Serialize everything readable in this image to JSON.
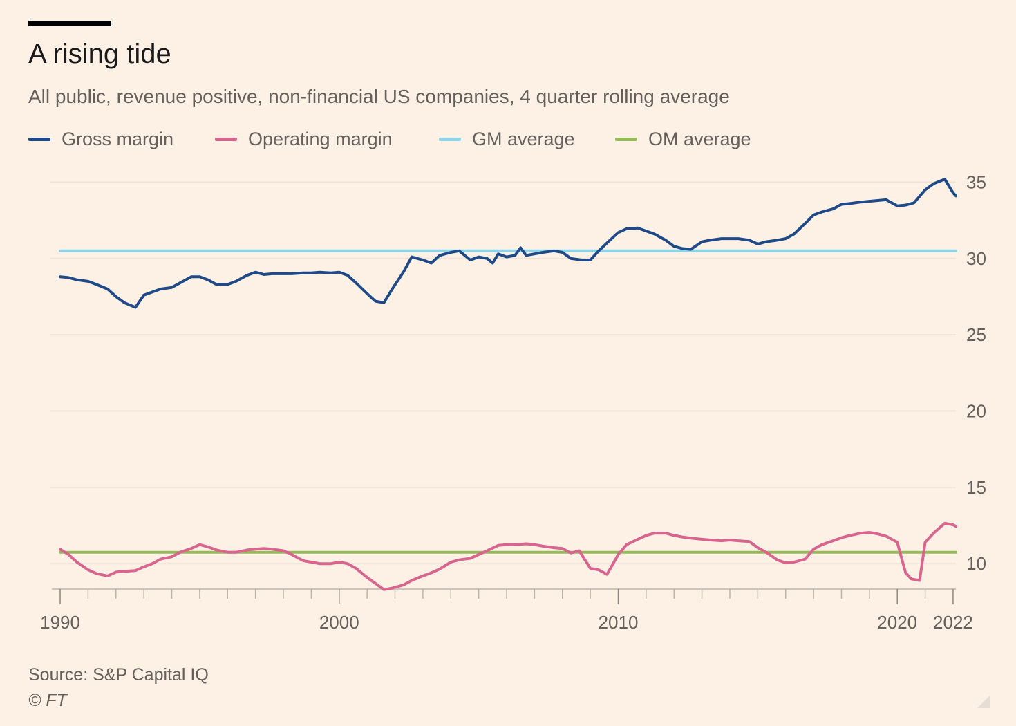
{
  "header": {
    "title": "A rising tide",
    "subtitle": "All public, revenue positive, non-financial US companies, 4 quarter rolling average"
  },
  "legend": [
    {
      "label": "Gross margin",
      "color": "#204a87"
    },
    {
      "label": "Operating margin",
      "color": "#d8658e"
    },
    {
      "label": "GM average",
      "color": "#8fd3e8"
    },
    {
      "label": "OM average",
      "color": "#96bb59"
    }
  ],
  "footer": {
    "source": "Source: S&P Capital IQ",
    "copyright": "© FT"
  },
  "chart_data": {
    "type": "line",
    "title": "A rising tide",
    "subtitle": "All public, revenue positive, non-financial US companies, 4 quarter rolling average",
    "xlim": [
      1989.9,
      2022.1
    ],
    "ylim": [
      7.7,
      36.2
    ],
    "x_ticks": [
      1990,
      2000,
      2010,
      2020,
      2022
    ],
    "y_ticks": [
      10,
      15,
      20,
      25,
      30,
      35
    ],
    "y_axis_side": "right",
    "grid": "horizontal",
    "legend_position": "top",
    "series": [
      {
        "name": "Gross margin",
        "color": "#204a87",
        "points": [
          [
            1990.0,
            28.8
          ],
          [
            1990.3,
            28.75
          ],
          [
            1990.6,
            28.6
          ],
          [
            1991.0,
            28.5
          ],
          [
            1991.3,
            28.3
          ],
          [
            1991.7,
            28.0
          ],
          [
            1992.0,
            27.5
          ],
          [
            1992.3,
            27.1
          ],
          [
            1992.7,
            26.8
          ],
          [
            1993.0,
            27.6
          ],
          [
            1993.3,
            27.8
          ],
          [
            1993.6,
            28.0
          ],
          [
            1994.0,
            28.1
          ],
          [
            1994.3,
            28.4
          ],
          [
            1994.7,
            28.8
          ],
          [
            1995.0,
            28.8
          ],
          [
            1995.3,
            28.6
          ],
          [
            1995.6,
            28.3
          ],
          [
            1996.0,
            28.3
          ],
          [
            1996.3,
            28.5
          ],
          [
            1996.7,
            28.9
          ],
          [
            1997.0,
            29.1
          ],
          [
            1997.3,
            28.95
          ],
          [
            1997.6,
            29.0
          ],
          [
            1998.0,
            29.0
          ],
          [
            1998.3,
            29.0
          ],
          [
            1998.7,
            29.05
          ],
          [
            1999.0,
            29.05
          ],
          [
            1999.3,
            29.1
          ],
          [
            1999.7,
            29.05
          ],
          [
            2000.0,
            29.1
          ],
          [
            2000.3,
            28.9
          ],
          [
            2000.6,
            28.4
          ],
          [
            2001.0,
            27.7
          ],
          [
            2001.3,
            27.2
          ],
          [
            2001.6,
            27.1
          ],
          [
            2001.9,
            28.0
          ],
          [
            2002.3,
            29.1
          ],
          [
            2002.6,
            30.1
          ],
          [
            2003.0,
            29.9
          ],
          [
            2003.3,
            29.7
          ],
          [
            2003.6,
            30.2
          ],
          [
            2004.0,
            30.4
          ],
          [
            2004.3,
            30.5
          ],
          [
            2004.7,
            29.9
          ],
          [
            2005.0,
            30.1
          ],
          [
            2005.3,
            30.0
          ],
          [
            2005.5,
            29.7
          ],
          [
            2005.7,
            30.3
          ],
          [
            2006.0,
            30.1
          ],
          [
            2006.3,
            30.2
          ],
          [
            2006.5,
            30.7
          ],
          [
            2006.7,
            30.2
          ],
          [
            2007.0,
            30.3
          ],
          [
            2007.3,
            30.4
          ],
          [
            2007.7,
            30.5
          ],
          [
            2008.0,
            30.4
          ],
          [
            2008.3,
            30.0
          ],
          [
            2008.7,
            29.9
          ],
          [
            2009.0,
            29.9
          ],
          [
            2009.3,
            30.5
          ],
          [
            2009.7,
            31.2
          ],
          [
            2010.0,
            31.7
          ],
          [
            2010.3,
            31.95
          ],
          [
            2010.7,
            32.0
          ],
          [
            2011.0,
            31.8
          ],
          [
            2011.3,
            31.6
          ],
          [
            2011.7,
            31.2
          ],
          [
            2012.0,
            30.8
          ],
          [
            2012.3,
            30.65
          ],
          [
            2012.6,
            30.6
          ],
          [
            2013.0,
            31.1
          ],
          [
            2013.3,
            31.2
          ],
          [
            2013.7,
            31.3
          ],
          [
            2014.0,
            31.3
          ],
          [
            2014.3,
            31.3
          ],
          [
            2014.7,
            31.2
          ],
          [
            2015.0,
            30.95
          ],
          [
            2015.3,
            31.1
          ],
          [
            2015.7,
            31.2
          ],
          [
            2016.0,
            31.3
          ],
          [
            2016.3,
            31.6
          ],
          [
            2016.7,
            32.3
          ],
          [
            2017.0,
            32.85
          ],
          [
            2017.3,
            33.05
          ],
          [
            2017.7,
            33.25
          ],
          [
            2018.0,
            33.55
          ],
          [
            2018.3,
            33.6
          ],
          [
            2018.7,
            33.7
          ],
          [
            2019.0,
            33.75
          ],
          [
            2019.3,
            33.8
          ],
          [
            2019.6,
            33.85
          ],
          [
            2020.0,
            33.45
          ],
          [
            2020.3,
            33.5
          ],
          [
            2020.6,
            33.65
          ],
          [
            2021.0,
            34.5
          ],
          [
            2021.3,
            34.9
          ],
          [
            2021.7,
            35.2
          ],
          [
            2022.0,
            34.3
          ],
          [
            2022.1,
            34.1
          ]
        ]
      },
      {
        "name": "Operating margin",
        "color": "#d8658e",
        "points": [
          [
            1990.0,
            10.95
          ],
          [
            1990.3,
            10.6
          ],
          [
            1990.6,
            10.1
          ],
          [
            1991.0,
            9.6
          ],
          [
            1991.3,
            9.35
          ],
          [
            1991.7,
            9.2
          ],
          [
            1992.0,
            9.45
          ],
          [
            1992.3,
            9.5
          ],
          [
            1992.7,
            9.55
          ],
          [
            1993.0,
            9.8
          ],
          [
            1993.3,
            10.0
          ],
          [
            1993.6,
            10.3
          ],
          [
            1994.0,
            10.45
          ],
          [
            1994.3,
            10.75
          ],
          [
            1994.7,
            11.0
          ],
          [
            1995.0,
            11.25
          ],
          [
            1995.3,
            11.1
          ],
          [
            1995.6,
            10.9
          ],
          [
            1996.0,
            10.75
          ],
          [
            1996.3,
            10.75
          ],
          [
            1996.7,
            10.9
          ],
          [
            1997.0,
            10.95
          ],
          [
            1997.3,
            11.0
          ],
          [
            1997.6,
            10.95
          ],
          [
            1998.0,
            10.85
          ],
          [
            1998.3,
            10.6
          ],
          [
            1998.7,
            10.2
          ],
          [
            1999.0,
            10.1
          ],
          [
            1999.3,
            10.0
          ],
          [
            1999.7,
            10.0
          ],
          [
            2000.0,
            10.1
          ],
          [
            2000.3,
            10.0
          ],
          [
            2000.6,
            9.7
          ],
          [
            2001.0,
            9.1
          ],
          [
            2001.3,
            8.7
          ],
          [
            2001.6,
            8.3
          ],
          [
            2001.9,
            8.4
          ],
          [
            2002.3,
            8.6
          ],
          [
            2002.6,
            8.9
          ],
          [
            2003.0,
            9.2
          ],
          [
            2003.3,
            9.4
          ],
          [
            2003.6,
            9.65
          ],
          [
            2004.0,
            10.1
          ],
          [
            2004.3,
            10.25
          ],
          [
            2004.7,
            10.35
          ],
          [
            2005.0,
            10.6
          ],
          [
            2005.3,
            10.85
          ],
          [
            2005.7,
            11.2
          ],
          [
            2006.0,
            11.25
          ],
          [
            2006.3,
            11.25
          ],
          [
            2006.7,
            11.3
          ],
          [
            2007.0,
            11.25
          ],
          [
            2007.3,
            11.15
          ],
          [
            2007.7,
            11.05
          ],
          [
            2008.0,
            11.0
          ],
          [
            2008.3,
            10.7
          ],
          [
            2008.6,
            10.85
          ],
          [
            2009.0,
            9.7
          ],
          [
            2009.3,
            9.6
          ],
          [
            2009.6,
            9.3
          ],
          [
            2010.0,
            10.6
          ],
          [
            2010.3,
            11.25
          ],
          [
            2010.7,
            11.6
          ],
          [
            2011.0,
            11.85
          ],
          [
            2011.3,
            12.0
          ],
          [
            2011.7,
            12.0
          ],
          [
            2012.0,
            11.85
          ],
          [
            2012.3,
            11.75
          ],
          [
            2012.7,
            11.65
          ],
          [
            2013.0,
            11.6
          ],
          [
            2013.3,
            11.55
          ],
          [
            2013.7,
            11.5
          ],
          [
            2014.0,
            11.55
          ],
          [
            2014.3,
            11.5
          ],
          [
            2014.7,
            11.45
          ],
          [
            2015.0,
            11.05
          ],
          [
            2015.3,
            10.75
          ],
          [
            2015.7,
            10.25
          ],
          [
            2016.0,
            10.05
          ],
          [
            2016.3,
            10.1
          ],
          [
            2016.7,
            10.3
          ],
          [
            2017.0,
            10.95
          ],
          [
            2017.3,
            11.25
          ],
          [
            2017.7,
            11.5
          ],
          [
            2018.0,
            11.7
          ],
          [
            2018.3,
            11.85
          ],
          [
            2018.7,
            12.0
          ],
          [
            2019.0,
            12.05
          ],
          [
            2019.3,
            11.95
          ],
          [
            2019.6,
            11.8
          ],
          [
            2020.0,
            11.4
          ],
          [
            2020.3,
            9.4
          ],
          [
            2020.5,
            9.0
          ],
          [
            2020.8,
            8.9
          ],
          [
            2021.0,
            11.4
          ],
          [
            2021.3,
            12.0
          ],
          [
            2021.7,
            12.65
          ],
          [
            2022.0,
            12.55
          ],
          [
            2022.1,
            12.45
          ]
        ]
      },
      {
        "name": "GM average",
        "color": "#8fd3e8",
        "points": [
          [
            1990.0,
            30.5
          ],
          [
            2022.1,
            30.5
          ]
        ]
      },
      {
        "name": "OM average",
        "color": "#96bb59",
        "points": [
          [
            1990.0,
            10.75
          ],
          [
            2022.1,
            10.75
          ]
        ]
      }
    ]
  }
}
